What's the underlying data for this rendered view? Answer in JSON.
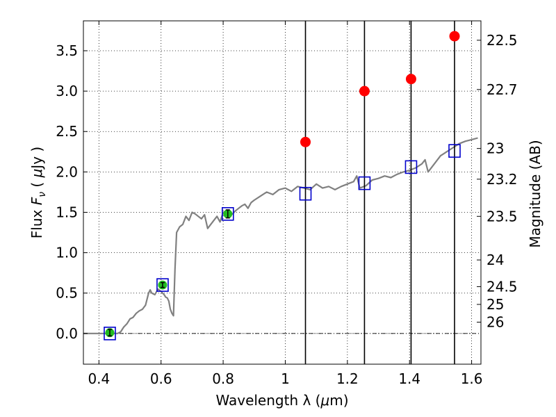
{
  "chart_data": {
    "type": "scatter",
    "title": "",
    "xlabel_text": "Wavelength  λ (",
    "xlabel_unit": "μ",
    "xlabel_tail": "m)",
    "ylabel_text": "Flux  ",
    "ylabel_symbol": "F",
    "ylabel_sub": "ν",
    "ylabel_unit_pre": "  ( ",
    "ylabel_unit_mu": "μ",
    "ylabel_unit_post": "Jy )",
    "ylabel_right": "Magnitude (AB)",
    "xlim": [
      0.35,
      1.63
    ],
    "ylim": [
      -0.38,
      3.87
    ],
    "grid": true,
    "x_ticks": [
      0.4,
      0.6,
      0.8,
      1.0,
      1.2,
      1.4,
      1.6
    ],
    "x_tick_labels": [
      "0.4",
      "0.6",
      "0.8",
      "1",
      "1.2",
      "1.4",
      "1.6"
    ],
    "y_ticks": [
      0.0,
      0.5,
      1.0,
      1.5,
      2.0,
      2.5,
      3.0,
      3.5
    ],
    "y_tick_labels": [
      "0.0",
      "0.5",
      "1.0",
      "1.5",
      "2.0",
      "2.5",
      "3.0",
      "3.5"
    ],
    "right_ticks": [
      {
        "label": "22.5",
        "flux": 3.63
      },
      {
        "label": "22.7",
        "flux": 3.02
      },
      {
        "label": "23",
        "flux": 2.29
      },
      {
        "label": "23.2",
        "flux": 1.91
      },
      {
        "label": "23.5",
        "flux": 1.45
      },
      {
        "label": "24",
        "flux": 0.91
      },
      {
        "label": "24.5",
        "flux": 0.58
      },
      {
        "label": "25",
        "flux": 0.36
      },
      {
        "label": "26",
        "flux": 0.14
      }
    ],
    "vertical_lines_x": [
      1.065,
      1.255,
      1.405,
      1.545
    ],
    "colors": {
      "spectrum": "#808080",
      "model_squares": "#0000cc",
      "detections": "#22bb22",
      "upper_points": "#ff0000",
      "vlines": "#000000",
      "zero_line": "#000000"
    },
    "series": [
      {
        "kind": "spectrum",
        "x": [
          0.35,
          0.37,
          0.4,
          0.43,
          0.46,
          0.47,
          0.48,
          0.49,
          0.5,
          0.51,
          0.52,
          0.53,
          0.54,
          0.55,
          0.56,
          0.565,
          0.57,
          0.58,
          0.59,
          0.6,
          0.61,
          0.615,
          0.62,
          0.625,
          0.63,
          0.635,
          0.64,
          0.645,
          0.65,
          0.66,
          0.67,
          0.68,
          0.69,
          0.7,
          0.71,
          0.72,
          0.73,
          0.74,
          0.75,
          0.76,
          0.77,
          0.78,
          0.79,
          0.8,
          0.81,
          0.82,
          0.83,
          0.84,
          0.85,
          0.86,
          0.87,
          0.88,
          0.89,
          0.9,
          0.92,
          0.94,
          0.96,
          0.98,
          1.0,
          1.02,
          1.04,
          1.06,
          1.08,
          1.1,
          1.12,
          1.14,
          1.16,
          1.18,
          1.2,
          1.22,
          1.23,
          1.24,
          1.26,
          1.28,
          1.3,
          1.32,
          1.34,
          1.36,
          1.38,
          1.4,
          1.42,
          1.44,
          1.45,
          1.46,
          1.48,
          1.5,
          1.52,
          1.54,
          1.56,
          1.58,
          1.6,
          1.62
        ],
        "y": [
          0.0,
          0.0,
          0.0,
          0.0,
          0.0,
          0.02,
          0.08,
          0.12,
          0.18,
          0.2,
          0.25,
          0.28,
          0.3,
          0.35,
          0.5,
          0.54,
          0.5,
          0.48,
          0.55,
          0.52,
          0.48,
          0.45,
          0.44,
          0.4,
          0.3,
          0.25,
          0.22,
          0.8,
          1.25,
          1.32,
          1.35,
          1.45,
          1.4,
          1.5,
          1.48,
          1.45,
          1.42,
          1.47,
          1.3,
          1.35,
          1.4,
          1.45,
          1.38,
          1.5,
          1.52,
          1.45,
          1.48,
          1.52,
          1.55,
          1.58,
          1.6,
          1.55,
          1.62,
          1.65,
          1.7,
          1.75,
          1.72,
          1.78,
          1.8,
          1.76,
          1.82,
          1.8,
          1.78,
          1.85,
          1.8,
          1.82,
          1.78,
          1.82,
          1.85,
          1.88,
          1.95,
          1.8,
          1.83,
          1.9,
          1.92,
          1.95,
          1.93,
          1.97,
          2.0,
          2.02,
          2.05,
          2.1,
          2.15,
          2.0,
          2.1,
          2.2,
          2.25,
          2.3,
          2.35,
          2.38,
          2.4,
          2.42
        ]
      },
      {
        "kind": "model_squares",
        "x": [
          0.435,
          0.605,
          0.815,
          1.065,
          1.255,
          1.405,
          1.545
        ],
        "y": [
          0.0,
          0.6,
          1.48,
          1.73,
          1.86,
          2.06,
          2.26
        ]
      },
      {
        "kind": "detections",
        "x": [
          0.435,
          0.605,
          0.815
        ],
        "y": [
          0.01,
          0.6,
          1.48
        ],
        "yerr": [
          0.04,
          0.03,
          0.05
        ]
      },
      {
        "kind": "upper_points",
        "x": [
          1.065,
          1.255,
          1.405,
          1.545
        ],
        "y": [
          2.37,
          3.0,
          3.15,
          3.68
        ]
      }
    ]
  }
}
